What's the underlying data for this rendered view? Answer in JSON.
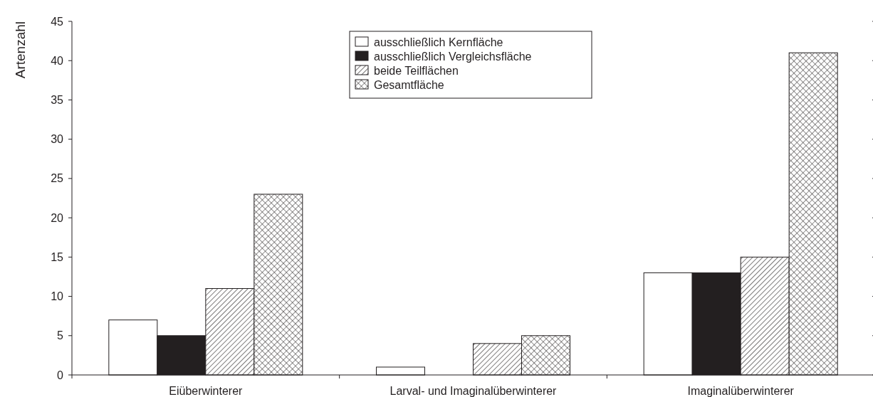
{
  "chart_data": {
    "type": "bar",
    "ylabel": "Artenzahl",
    "categories": [
      "Eiüberwinterer",
      "Larval- und Imaginalüberwinterer",
      "Imaginalüberwinterer"
    ],
    "series": [
      {
        "name": "ausschließlich Kernfläche",
        "color": "#ffffff",
        "values": [
          7,
          1,
          13
        ]
      },
      {
        "name": "ausschließlich Vergleichsfläche",
        "color": "#231f20",
        "values": [
          5,
          0,
          13
        ]
      },
      {
        "name": "beide Teilflächen",
        "color": "#231f20",
        "values": [
          11,
          4,
          15
        ]
      },
      {
        "name": "Gesamtfläche",
        "color": "#231f20",
        "values": [
          23,
          5,
          41
        ]
      }
    ],
    "ylim": [
      0,
      45
    ],
    "yticks": [
      0,
      5,
      10,
      15,
      20,
      25,
      30,
      35,
      40,
      45
    ],
    "grid": false,
    "legend": "top"
  }
}
